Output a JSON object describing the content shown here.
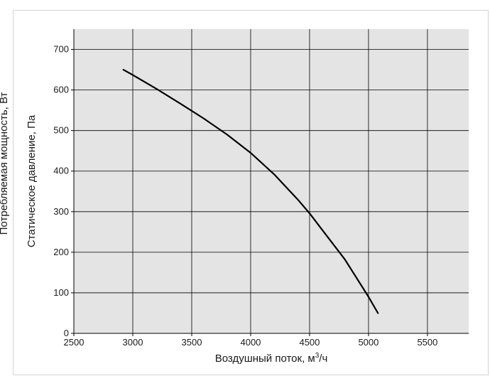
{
  "chart_data": {
    "type": "line",
    "title": "",
    "xlabel": "Воздушный поток, м³/ч",
    "xlabel_parts": [
      "Воздушный поток, м",
      "3",
      "/ч"
    ],
    "ylabel": "Статическое давление, Па",
    "ylabel_secondary": "Потребляемая мощность, Вт",
    "xlim": [
      2500,
      5850
    ],
    "ylim": [
      0,
      750
    ],
    "x_ticks": [
      2500,
      3000,
      3500,
      4000,
      4500,
      5000,
      5500
    ],
    "y_ticks": [
      0,
      100,
      200,
      300,
      400,
      500,
      600,
      700
    ],
    "grid": true,
    "background": "#e4e4e4",
    "line_color": "#000000",
    "series": [
      {
        "x": [
          2920,
          3000,
          3200,
          3400,
          3600,
          3800,
          4000,
          4200,
          4400,
          4500,
          4600,
          4800,
          5000,
          5080
        ],
        "values": [
          650,
          637,
          603,
          567,
          530,
          490,
          445,
          392,
          330,
          296,
          258,
          182,
          90,
          50
        ]
      }
    ]
  }
}
